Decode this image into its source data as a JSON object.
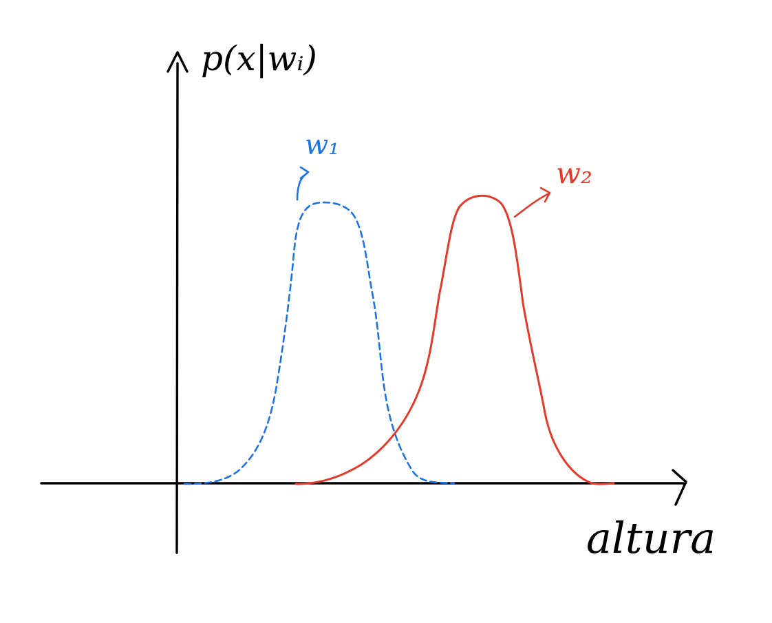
{
  "diagram": {
    "y_axis_label": "p(x|wᵢ)",
    "x_axis_label": "altura",
    "classes": [
      {
        "label": "w₁",
        "line_style": "dashed",
        "color": "#1a73e8"
      },
      {
        "label": "w₂",
        "line_style": "solid",
        "color": "#e53a2a"
      }
    ],
    "axis_color": "#000000"
  }
}
